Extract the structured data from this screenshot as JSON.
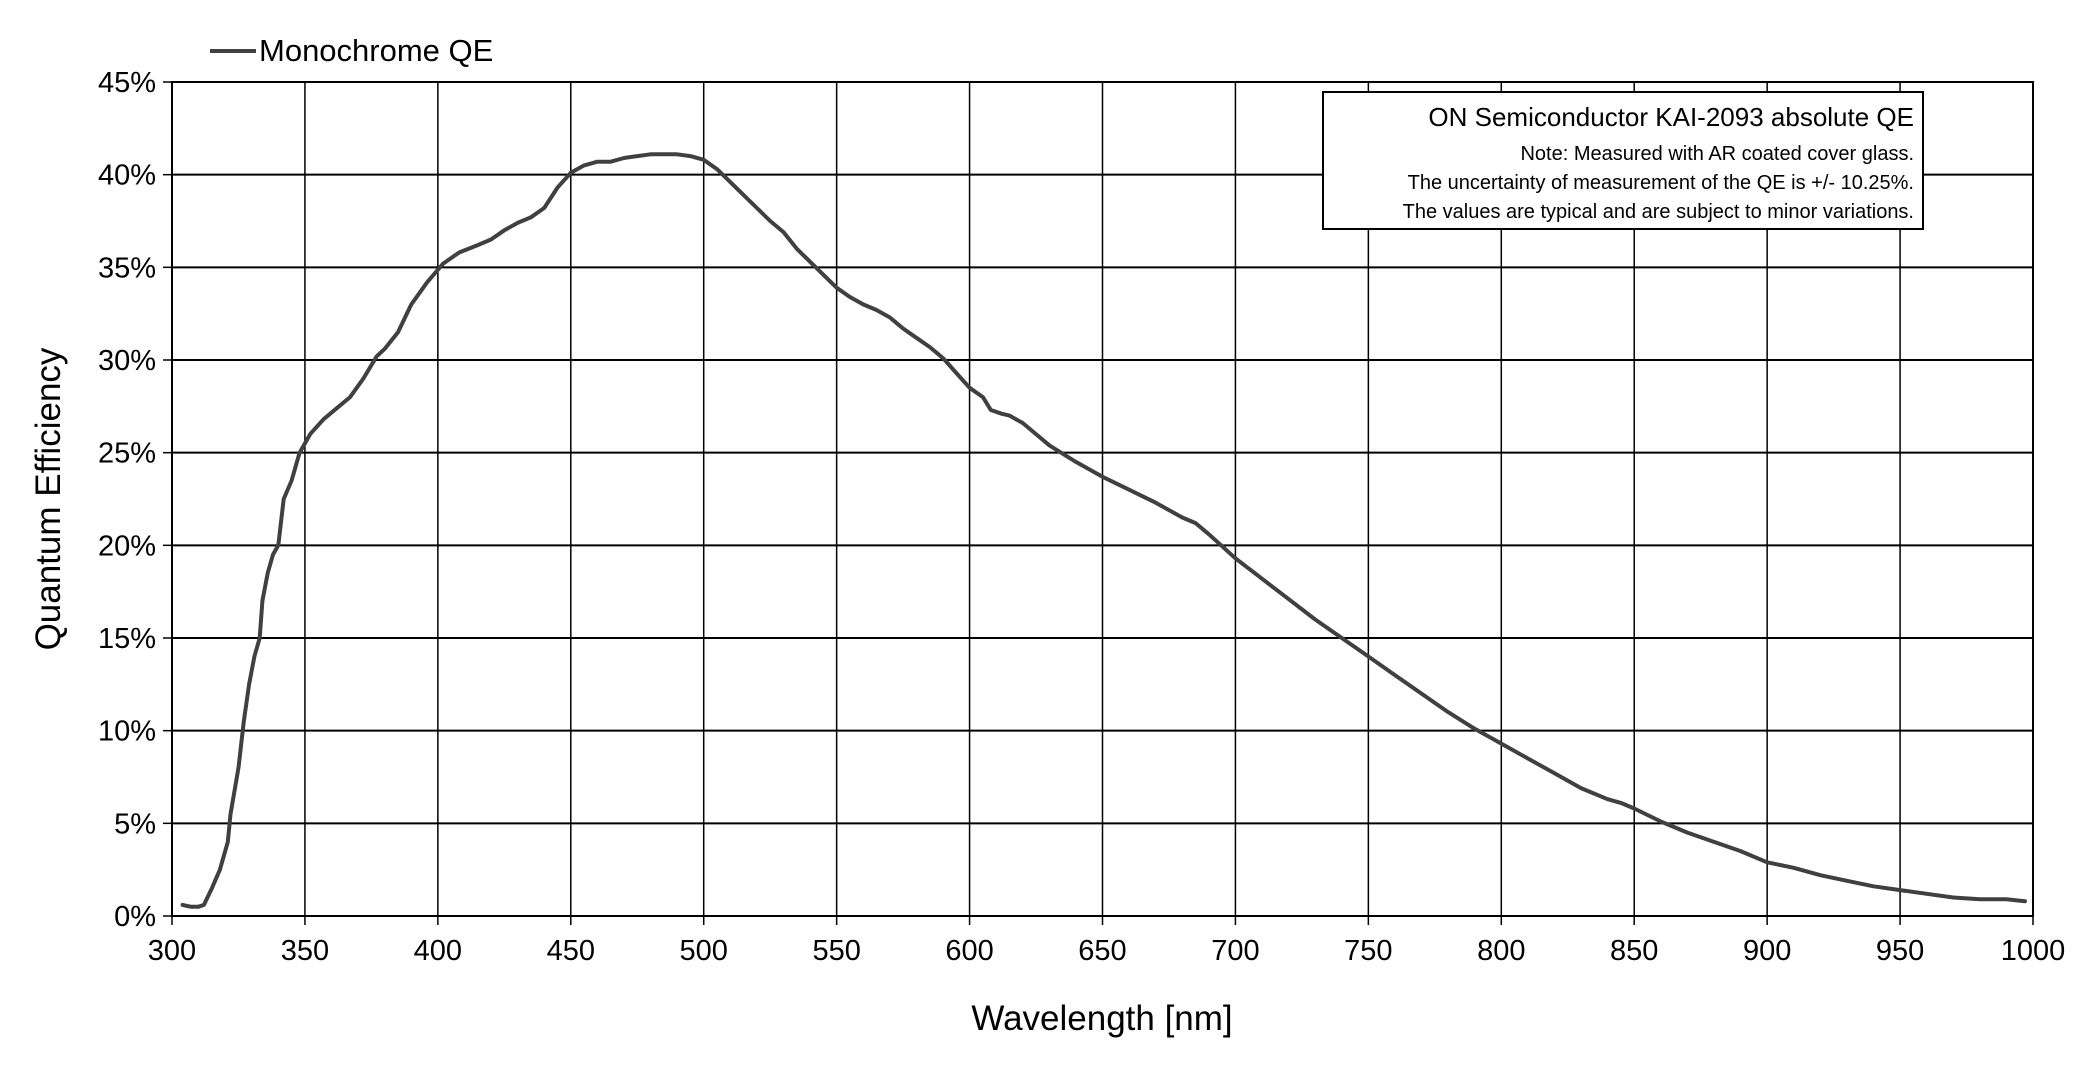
{
  "chart_data": {
    "type": "line",
    "title": "",
    "xlabel": "Wavelength [nm]",
    "ylabel": "Quantum Efficiency",
    "xlim": [
      300,
      1000
    ],
    "ylim": [
      0,
      45
    ],
    "x_ticks": [
      300,
      350,
      400,
      450,
      500,
      550,
      600,
      650,
      700,
      750,
      800,
      850,
      900,
      950,
      1000
    ],
    "y_ticks": [
      0,
      5,
      10,
      15,
      20,
      25,
      30,
      35,
      40,
      45
    ],
    "y_tick_labels": [
      "0%",
      "5%",
      "10%",
      "15%",
      "20%",
      "25%",
      "30%",
      "35%",
      "40%",
      "45%"
    ],
    "grid": true,
    "legend": {
      "position": "top-left",
      "entries": [
        "Monochrome QE"
      ]
    },
    "annotation": {
      "title": "ON Semiconductor KAI-2093 absolute QE",
      "lines": [
        "Note: Measured with AR coated cover glass.",
        "The uncertainty of measurement of the QE is +/- 10.25%.",
        "The values are typical and are subject to minor variations."
      ],
      "position": "top-right"
    },
    "series": [
      {
        "name": "Monochrome QE",
        "color": "#404040",
        "x": [
          304,
          307,
          310,
          312,
          315,
          318,
          321,
          322,
          325,
          327,
          329,
          331,
          333,
          334,
          336,
          338,
          340,
          342,
          345,
          348,
          352,
          357,
          362,
          367,
          372,
          377,
          380,
          385,
          390,
          396,
          402,
          408,
          415,
          420,
          425,
          430,
          435,
          440,
          445,
          450,
          455,
          460,
          465,
          470,
          475,
          480,
          485,
          490,
          495,
          500,
          505,
          510,
          515,
          520,
          525,
          530,
          535,
          540,
          545,
          550,
          555,
          560,
          565,
          570,
          575,
          580,
          585,
          590,
          595,
          600,
          605,
          608,
          612,
          615,
          620,
          625,
          630,
          640,
          650,
          660,
          670,
          675,
          680,
          685,
          690,
          700,
          710,
          720,
          730,
          740,
          750,
          760,
          770,
          780,
          790,
          800,
          810,
          820,
          830,
          840,
          845,
          850,
          860,
          870,
          880,
          890,
          900,
          910,
          920,
          930,
          940,
          950,
          960,
          970,
          980,
          990,
          997
        ],
        "values": [
          0.6,
          0.5,
          0.5,
          0.6,
          1.5,
          2.5,
          4.0,
          5.5,
          8.0,
          10.5,
          12.5,
          14.0,
          15.0,
          17.0,
          18.5,
          19.5,
          20.0,
          22.5,
          23.5,
          25.0,
          26.0,
          26.8,
          27.4,
          28.0,
          29.0,
          30.2,
          30.6,
          31.5,
          33.0,
          34.2,
          35.2,
          35.8,
          36.2,
          36.5,
          37.0,
          37.4,
          37.7,
          38.2,
          39.3,
          40.1,
          40.5,
          40.7,
          40.7,
          40.9,
          41.0,
          41.1,
          41.1,
          41.1,
          41.0,
          40.8,
          40.3,
          39.6,
          38.9,
          38.2,
          37.5,
          36.9,
          36.0,
          35.3,
          34.6,
          33.9,
          33.4,
          33.0,
          32.7,
          32.3,
          31.7,
          31.2,
          30.7,
          30.1,
          29.3,
          28.5,
          28.0,
          27.3,
          27.1,
          27.0,
          26.6,
          26.0,
          25.4,
          24.5,
          23.7,
          23.0,
          22.3,
          21.9,
          21.5,
          21.2,
          20.6,
          19.3,
          18.2,
          17.1,
          16.0,
          15.0,
          14.0,
          13.0,
          12.0,
          11.0,
          10.1,
          9.3,
          8.5,
          7.7,
          6.9,
          6.3,
          6.1,
          5.8,
          5.1,
          4.5,
          4.0,
          3.5,
          2.9,
          2.6,
          2.2,
          1.9,
          1.6,
          1.4,
          1.2,
          1.0,
          0.9,
          0.9,
          0.8
        ]
      }
    ]
  }
}
